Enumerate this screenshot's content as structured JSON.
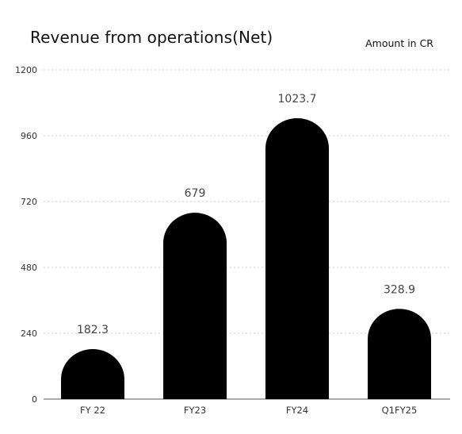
{
  "chart_data": {
    "type": "bar",
    "title": "Revenue from operations(Net)",
    "unit_note": "Amount in CR",
    "categories": [
      "FY 22",
      "FY23",
      "FY24",
      "Q1FY25"
    ],
    "values": [
      182.3,
      679,
      1023.7,
      328.9
    ],
    "value_labels": [
      "182.3",
      "679",
      "1023.7",
      "328.9"
    ],
    "ylim": [
      0,
      1200
    ],
    "yticks": [
      0,
      240,
      480,
      720,
      960,
      1200
    ],
    "grid": true,
    "bar_color": "#000000",
    "grid_color": "#cccccc"
  }
}
